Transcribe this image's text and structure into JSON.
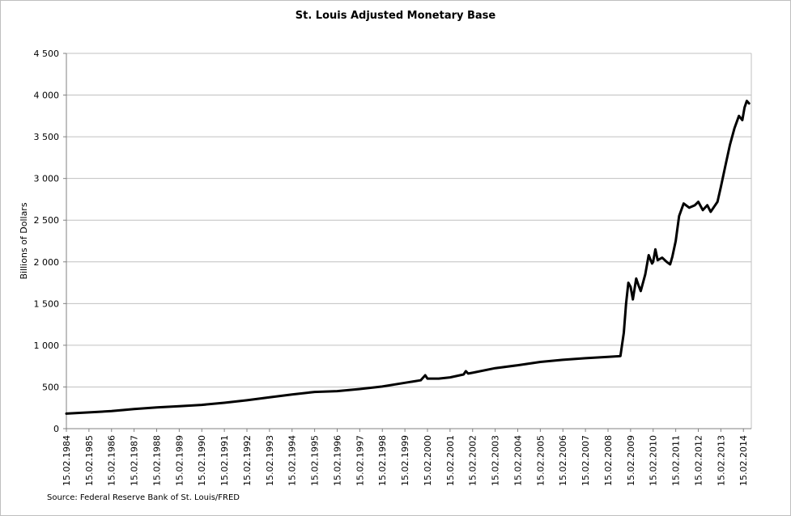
{
  "chart_data": {
    "type": "line",
    "title": "St. Louis Adjusted Monetary Base",
    "ylabel": "Billions of Dollars",
    "xlabel": "",
    "source": "Source: Federal Reserve Bank of St. Louis/FRED",
    "ylim": [
      0,
      4500
    ],
    "yticks": [
      0,
      500,
      1000,
      1500,
      2000,
      2500,
      3000,
      3500,
      4000,
      4500
    ],
    "ytick_labels": [
      "0",
      "500",
      "1 000",
      "1 500",
      "2 000",
      "2 500",
      "3 000",
      "3 500",
      "4 000",
      "4 500"
    ],
    "xlim": [
      1984.0,
      2014.35
    ],
    "xtick_labels": [
      "15.02.1984",
      "15.02.1985",
      "15.02.1986",
      "15.02.1987",
      "15.02.1988",
      "15.02.1989",
      "15.02.1990",
      "15.02.1991",
      "15.02.1992",
      "15.02.1993",
      "15.02.1994",
      "15.02.1995",
      "15.02.1996",
      "15.02.1997",
      "15.02.1998",
      "15.02.1999",
      "15.02.2000",
      "15.02.2001",
      "15.02.2002",
      "15.02.2003",
      "15.02.2004",
      "15.02.2005",
      "15.02.2006",
      "15.02.2007",
      "15.02.2008",
      "15.02.2009",
      "15.02.2010",
      "15.02.2011",
      "15.02.2012",
      "15.02.2013",
      "15.02.2014"
    ],
    "grid": "horizontal",
    "line_color": "#000000",
    "series": [
      {
        "values": [
          [
            1984.0,
            180
          ],
          [
            1985.0,
            195
          ],
          [
            1986.0,
            210
          ],
          [
            1987.0,
            235
          ],
          [
            1988.0,
            255
          ],
          [
            1989.0,
            270
          ],
          [
            1990.0,
            285
          ],
          [
            1991.0,
            310
          ],
          [
            1992.0,
            340
          ],
          [
            1993.0,
            375
          ],
          [
            1994.0,
            410
          ],
          [
            1995.0,
            440
          ],
          [
            1996.0,
            450
          ],
          [
            1997.0,
            475
          ],
          [
            1998.0,
            505
          ],
          [
            1999.0,
            550
          ],
          [
            1999.7,
            580
          ],
          [
            1999.9,
            640
          ],
          [
            2000.0,
            600
          ],
          [
            2000.5,
            600
          ],
          [
            2001.0,
            615
          ],
          [
            2001.6,
            650
          ],
          [
            2001.7,
            690
          ],
          [
            2001.8,
            660
          ],
          [
            2002.0,
            670
          ],
          [
            2003.0,
            725
          ],
          [
            2004.0,
            760
          ],
          [
            2005.0,
            800
          ],
          [
            2006.0,
            825
          ],
          [
            2007.0,
            845
          ],
          [
            2008.0,
            860
          ],
          [
            2008.55,
            870
          ],
          [
            2008.7,
            1150
          ],
          [
            2008.8,
            1500
          ],
          [
            2008.9,
            1750
          ],
          [
            2009.0,
            1700
          ],
          [
            2009.1,
            1550
          ],
          [
            2009.25,
            1800
          ],
          [
            2009.35,
            1720
          ],
          [
            2009.45,
            1650
          ],
          [
            2009.65,
            1850
          ],
          [
            2009.8,
            2080
          ],
          [
            2009.95,
            1980
          ],
          [
            2010.0,
            2000
          ],
          [
            2010.1,
            2150
          ],
          [
            2010.2,
            2020
          ],
          [
            2010.4,
            2050
          ],
          [
            2010.6,
            2000
          ],
          [
            2010.75,
            1970
          ],
          [
            2010.85,
            2060
          ],
          [
            2011.0,
            2250
          ],
          [
            2011.15,
            2550
          ],
          [
            2011.35,
            2700
          ],
          [
            2011.6,
            2650
          ],
          [
            2011.85,
            2680
          ],
          [
            2012.0,
            2720
          ],
          [
            2012.2,
            2620
          ],
          [
            2012.4,
            2680
          ],
          [
            2012.55,
            2600
          ],
          [
            2012.7,
            2660
          ],
          [
            2012.85,
            2720
          ],
          [
            2013.0,
            2900
          ],
          [
            2013.2,
            3150
          ],
          [
            2013.4,
            3400
          ],
          [
            2013.6,
            3600
          ],
          [
            2013.8,
            3750
          ],
          [
            2013.95,
            3700
          ],
          [
            2014.05,
            3850
          ],
          [
            2014.15,
            3930
          ],
          [
            2014.25,
            3900
          ]
        ]
      }
    ]
  }
}
